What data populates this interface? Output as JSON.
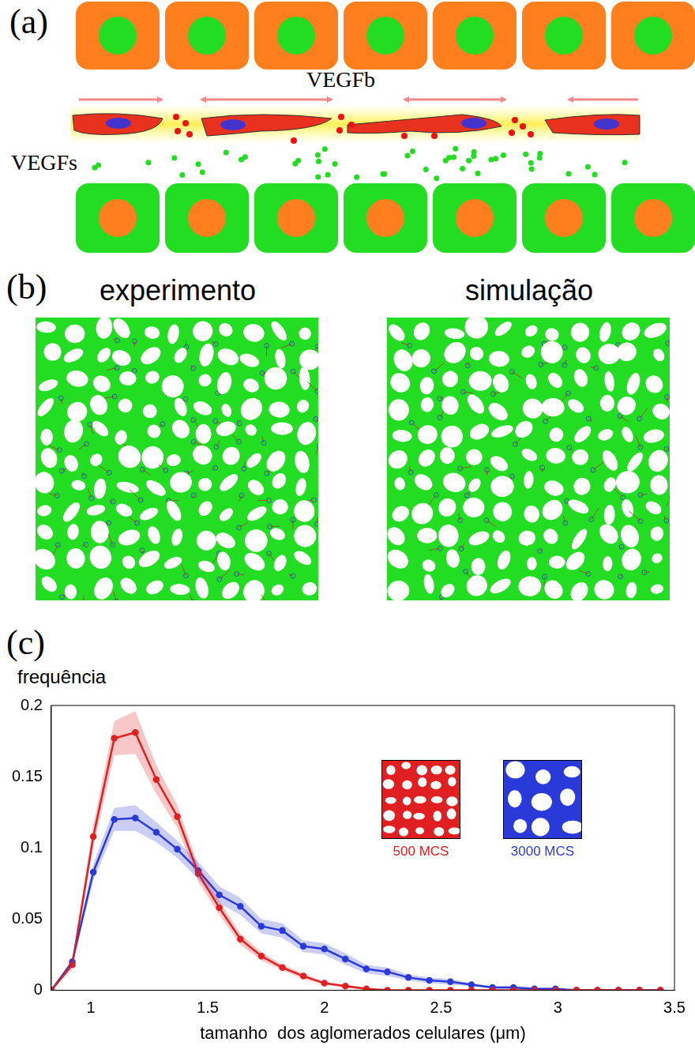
{
  "panel_a": {
    "letter": "(a)",
    "labels": [
      "VEGFb",
      "VEGFs"
    ]
  },
  "panel_b": {
    "letter": "(b)",
    "titles": [
      "experimento",
      "simulação"
    ]
  },
  "panel_c": {
    "letter": "(c)"
  },
  "chart_data": {
    "type": "line",
    "y_label": "frequência",
    "x_label": "tamanho  dos aglomerados celulares (μm)",
    "x": [
      0.83,
      0.92,
      1.01,
      1.1,
      1.19,
      1.28,
      1.37,
      1.46,
      1.55,
      1.64,
      1.73,
      1.82,
      1.91,
      2,
      2.09,
      2.18,
      2.27,
      2.36,
      2.45,
      2.54,
      2.63,
      2.72,
      2.81,
      2.9,
      2.99,
      3.08,
      3.17,
      3.26,
      3.35,
      3.44
    ],
    "series": [
      {
        "name": "500 MCS",
        "color": "#e02020",
        "marker": "circle",
        "values": [
          0,
          0.018,
          0.108,
          0.177,
          0.181,
          0.148,
          0.122,
          0.082,
          0.058,
          0.036,
          0.024,
          0.016,
          0.01,
          0.005,
          0.003,
          0.001,
          0,
          0,
          0,
          0,
          0,
          0,
          0,
          0,
          0,
          0,
          0,
          0,
          0,
          0
        ],
        "error": [
          0,
          0.003,
          0.008,
          0.012,
          0.015,
          0.01,
          0.008,
          0.006,
          0.005,
          0.004,
          0.003,
          0.002,
          0.002,
          0.001,
          0.001,
          0.001,
          0,
          0,
          0,
          0,
          0,
          0,
          0,
          0,
          0,
          0,
          0,
          0,
          0,
          0
        ]
      },
      {
        "name": "3000 MCS",
        "color": "#2a3ad8",
        "marker": "circle",
        "values": [
          0,
          0.02,
          0.083,
          0.12,
          0.121,
          0.111,
          0.099,
          0.084,
          0.067,
          0.059,
          0.045,
          0.042,
          0.031,
          0.029,
          0.022,
          0.015,
          0.013,
          0.009,
          0.007,
          0.006,
          0.004,
          0.002,
          0.002,
          0.001,
          0.001,
          0,
          0,
          0,
          0,
          0
        ],
        "error": [
          0,
          0.002,
          0.006,
          0.008,
          0.009,
          0.007,
          0.006,
          0.006,
          0.006,
          0.006,
          0.005,
          0.005,
          0.004,
          0.004,
          0.004,
          0.003,
          0.003,
          0.002,
          0.002,
          0.002,
          0.001,
          0.001,
          0.001,
          0.001,
          0.001,
          0,
          0,
          0,
          0,
          0
        ]
      }
    ],
    "xlim": [
      0.83,
      3.5
    ],
    "xticks": [
      1,
      1.5,
      2,
      2.5,
      3,
      3.5
    ],
    "ylim": [
      0,
      0.2
    ],
    "yticks": [
      0,
      0.05,
      0.1,
      0.15,
      0.2
    ],
    "grid": false
  }
}
